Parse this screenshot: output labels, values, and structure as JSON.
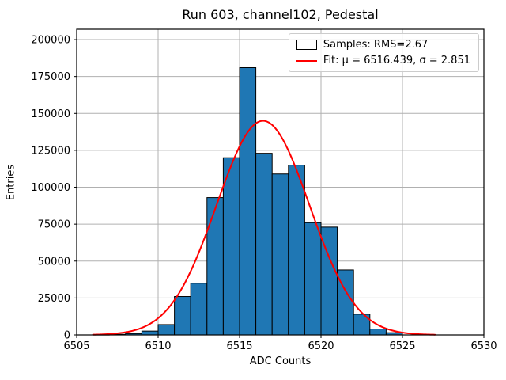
{
  "chart_data": {
    "type": "bar",
    "subtype": "histogram-with-gaussian-fit",
    "title": "Run 603, channel102, Pedestal",
    "xlabel": "ADC Counts",
    "ylabel": "Entries",
    "xlim": [
      6505,
      6530
    ],
    "ylim": [
      0,
      207000
    ],
    "xticks": [
      6505,
      6510,
      6515,
      6520,
      6525,
      6530
    ],
    "yticks": [
      0,
      25000,
      50000,
      75000,
      100000,
      125000,
      150000,
      175000,
      200000
    ],
    "grid": true,
    "grid_color": "#b0b0b0",
    "bar_fill_color": "#1f77b4",
    "bar_edge_color": "#000000",
    "fit_line_color": "#ff0000",
    "histogram": {
      "bin_edges": [
        6506,
        6507,
        6508,
        6509,
        6510,
        6511,
        6512,
        6513,
        6514,
        6515,
        6516,
        6517,
        6518,
        6519,
        6520,
        6521,
        6522,
        6523,
        6524,
        6525
      ],
      "counts": [
        100,
        400,
        900,
        2600,
        7000,
        26000,
        35000,
        93000,
        120000,
        181000,
        123000,
        109000,
        115000,
        76000,
        73000,
        44000,
        14000,
        4000,
        1500
      ]
    },
    "fit": {
      "mu": 6516.439,
      "sigma": 2.851,
      "peak": 145000,
      "x_range": [
        6506.0,
        6527.0
      ],
      "rms": 2.67
    },
    "legend": {
      "position": "upper right",
      "entries": [
        {
          "swatch": "patch",
          "label": "Samples: RMS=2.67"
        },
        {
          "swatch": "line",
          "label": "Fit: μ = 6516.439, σ = 2.851"
        }
      ]
    }
  }
}
